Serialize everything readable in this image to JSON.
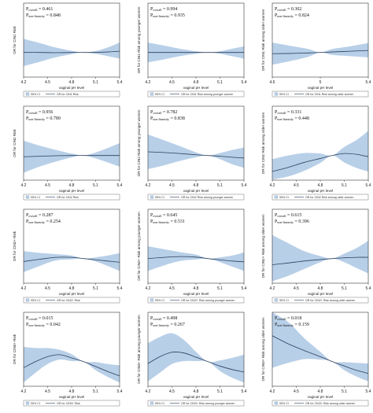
{
  "chart_data": [
    {
      "type": "line",
      "row": 0,
      "col": 0,
      "ylabel": "OR for CIN1 Risk",
      "xlabel": "vaginal pH level",
      "xticks": [
        "4.2",
        "4.5",
        "4.8",
        "5.1",
        "5.4"
      ],
      "xlim": [
        4.2,
        5.4
      ],
      "ylim": [
        0,
        3
      ],
      "p_overall_value": "0.461",
      "p_nonlin_value": "0.848",
      "legend_ci": "95% CI",
      "legend_line": "OR for CIN1 Risk",
      "x": [
        4.2,
        4.4,
        4.6,
        4.8,
        4.95,
        5.1,
        5.25,
        5.4
      ],
      "series": [
        {
          "values": [
            1.0,
            1.0,
            0.99,
            1.0,
            1.0,
            1.0,
            1.02,
            1.05
          ]
        }
      ],
      "ci_lower": [
        0.45,
        0.62,
        0.8,
        0.93,
        1.0,
        0.94,
        0.85,
        0.75
      ],
      "ci_upper": [
        1.55,
        1.38,
        1.2,
        1.07,
        1.0,
        1.06,
        1.2,
        1.4
      ]
    },
    {
      "type": "line",
      "row": 0,
      "col": 1,
      "ylabel": "OR for CIN1 Risk among younger women",
      "xlabel": "vaginal pH level",
      "xticks": [
        "4.2",
        "4.5",
        "4.8",
        "5.1",
        "5.4"
      ],
      "xlim": [
        4.2,
        5.4
      ],
      "ylim": [
        0,
        3
      ],
      "p_overall_value": "0.994",
      "p_nonlin_value": "0.935",
      "legend_ci": "95% CI",
      "legend_line": "OR for CIN1 Risk among younger women",
      "x": [
        4.2,
        4.4,
        4.6,
        4.8,
        4.95,
        5.1,
        5.25,
        5.4
      ],
      "series": [
        {
          "values": [
            1.0,
            1.0,
            1.0,
            1.0,
            1.0,
            1.0,
            1.0,
            1.0
          ]
        }
      ],
      "ci_lower": [
        0.6,
        0.72,
        0.85,
        0.95,
        1.0,
        0.95,
        0.85,
        0.75
      ],
      "ci_upper": [
        1.4,
        1.28,
        1.15,
        1.05,
        1.0,
        1.05,
        1.15,
        1.25
      ]
    },
    {
      "type": "line",
      "row": 0,
      "col": 2,
      "ylabel": "OR for CIN1 Risk among older women",
      "xlabel": "vaginal pH level",
      "xticks": [
        "4.6",
        "5",
        "5.4"
      ],
      "xlim": [
        4.6,
        5.4
      ],
      "ylim": [
        0,
        3
      ],
      "p_overall_value": "0.302",
      "p_nonlin_value": "0.824",
      "legend_ci": "95% CI",
      "legend_line": "OR for CIN1 Risk among older women",
      "x": [
        4.6,
        4.75,
        4.9,
        5.0,
        5.1,
        5.25,
        5.4
      ],
      "series": [
        {
          "values": [
            0.95,
            0.96,
            0.98,
            1.0,
            1.02,
            1.05,
            1.08
          ]
        }
      ],
      "ci_lower": [
        0.5,
        0.65,
        0.82,
        1.0,
        0.9,
        0.85,
        0.8
      ],
      "ci_upper": [
        1.4,
        1.27,
        1.14,
        1.0,
        1.14,
        1.25,
        1.38
      ]
    },
    {
      "type": "line",
      "row": 1,
      "col": 0,
      "ylabel": "OR for CIN2 Risk",
      "xlabel": "vaginal pH level",
      "xticks": [
        "4.2",
        "4.5",
        "4.8",
        "5.1",
        "5.4"
      ],
      "xlim": [
        4.2,
        5.4
      ],
      "ylim": [
        0,
        3
      ],
      "p_overall_value": "0.956",
      "p_nonlin_value": "0.789",
      "legend_ci": "95% CI",
      "legend_line": "OR for CIN2 Risk",
      "x": [
        4.2,
        4.4,
        4.6,
        4.8,
        4.95,
        5.1,
        5.25,
        5.4
      ],
      "series": [
        {
          "values": [
            0.95,
            0.97,
            0.99,
            1.0,
            1.0,
            1.0,
            1.0,
            1.0
          ]
        }
      ],
      "ci_lower": [
        0.3,
        0.55,
        0.75,
        0.92,
        1.0,
        0.88,
        0.72,
        0.55
      ],
      "ci_upper": [
        1.6,
        1.4,
        1.23,
        1.08,
        1.0,
        1.12,
        1.3,
        1.5
      ]
    },
    {
      "type": "line",
      "row": 1,
      "col": 1,
      "ylabel": "OR for CIN2 Risk among younger women",
      "xlabel": "vaginal pH level",
      "xticks": [
        "4.2",
        "4.5",
        "4.8",
        "5.1",
        "5.4"
      ],
      "xlim": [
        4.2,
        5.4
      ],
      "ylim": [
        0,
        3
      ],
      "p_overall_value": "0.782",
      "p_nonlin_value": "0.838",
      "legend_ci": "95% CI",
      "legend_line": "OR for CIN2 Risk among younger women",
      "x": [
        4.2,
        4.4,
        4.6,
        4.8,
        4.95,
        5.1,
        5.25,
        5.4
      ],
      "series": [
        {
          "values": [
            1.15,
            1.12,
            1.08,
            1.03,
            1.0,
            0.97,
            0.93,
            0.9
          ]
        }
      ],
      "ci_lower": [
        0.45,
        0.6,
        0.78,
        0.93,
        1.0,
        0.85,
        0.65,
        0.5
      ],
      "ci_upper": [
        1.85,
        1.62,
        1.38,
        1.13,
        1.0,
        1.1,
        1.22,
        1.32
      ]
    },
    {
      "type": "line",
      "row": 1,
      "col": 2,
      "ylabel": "OR for CIN2 Risk among older women",
      "xlabel": "vaginal pH level",
      "xticks": [
        "4.2",
        "4.5",
        "4.8",
        "5.1",
        "5.4"
      ],
      "xlim": [
        4.2,
        5.4
      ],
      "ylim": [
        0,
        3
      ],
      "p_overall_value": "0.331",
      "p_nonlin_value": "0.448",
      "legend_ci": "95% CI",
      "legend_line": "OR for CIN2 Risk among older women",
      "x": [
        4.2,
        4.4,
        4.6,
        4.8,
        4.95,
        5.1,
        5.25,
        5.4
      ],
      "series": [
        {
          "values": [
            0.35,
            0.52,
            0.72,
            0.88,
            1.0,
            1.08,
            1.05,
            0.95
          ]
        }
      ],
      "ci_lower": [
        0.02,
        0.15,
        0.38,
        0.7,
        1.0,
        0.72,
        0.5,
        0.35
      ],
      "ci_upper": [
        0.85,
        1.0,
        1.1,
        1.08,
        1.0,
        1.35,
        1.62,
        2.0
      ]
    },
    {
      "type": "line",
      "row": 2,
      "col": 0,
      "ylabel": "OR for CIN2+ Risk",
      "xlabel": "vaginal pH level",
      "xticks": [
        "4.2",
        "4.5",
        "4.8",
        "5.1",
        "5.4"
      ],
      "xlim": [
        4.2,
        5.4
      ],
      "ylim": [
        0,
        3
      ],
      "p_overall_value": "0.287",
      "p_nonlin_value": "0.254",
      "legend_ci": "95% CI",
      "legend_line": "OR for CIN2+ Risk",
      "x": [
        4.2,
        4.4,
        4.6,
        4.8,
        4.95,
        5.1,
        5.25,
        5.4
      ],
      "series": [
        {
          "values": [
            0.88,
            0.97,
            1.05,
            1.05,
            1.0,
            0.95,
            0.9,
            0.85
          ]
        }
      ],
      "ci_lower": [
        0.45,
        0.7,
        0.92,
        0.97,
        1.0,
        0.88,
        0.7,
        0.5
      ],
      "ci_upper": [
        1.3,
        1.23,
        1.18,
        1.12,
        1.0,
        1.05,
        1.12,
        1.22
      ]
    },
    {
      "type": "line",
      "row": 2,
      "col": 1,
      "ylabel": "OR for CIN2+ Risk among younger women",
      "xlabel": "vaginal pH level",
      "xticks": [
        "4.2",
        "4.5",
        "4.8",
        "5.1",
        "5.4"
      ],
      "xlim": [
        4.2,
        5.4
      ],
      "ylim": [
        0,
        3
      ],
      "p_overall_value": "0.645",
      "p_nonlin_value": "0.531",
      "legend_ci": "95% CI",
      "legend_line": "OR for CIN2+ Risk among younger women",
      "x": [
        4.2,
        4.4,
        4.6,
        4.8,
        4.95,
        5.1,
        5.25,
        5.4
      ],
      "series": [
        {
          "values": [
            1.0,
            1.05,
            1.08,
            1.06,
            1.0,
            0.95,
            0.9,
            0.87
          ]
        }
      ],
      "ci_lower": [
        0.5,
        0.72,
        0.9,
        0.96,
        1.0,
        0.85,
        0.68,
        0.5
      ],
      "ci_upper": [
        1.5,
        1.38,
        1.26,
        1.16,
        1.0,
        1.05,
        1.12,
        1.25
      ]
    },
    {
      "type": "line",
      "row": 2,
      "col": 2,
      "ylabel": "OR for CIN2+ Risk among older women",
      "xlabel": "vaginal pH level",
      "xticks": [
        "4.2",
        "4.5",
        "4.8",
        "5.1",
        "5.4"
      ],
      "xlim": [
        4.2,
        5.4
      ],
      "ylim": [
        0,
        3
      ],
      "p_overall_value": "0.615",
      "p_nonlin_value": "0.396",
      "legend_ci": "95% CI",
      "legend_line": "OR for CIN2+ Risk among older women",
      "x": [
        4.2,
        4.4,
        4.6,
        4.8,
        4.95,
        5.1,
        5.25,
        5.4
      ],
      "series": [
        {
          "values": [
            0.75,
            0.82,
            0.9,
            0.96,
            1.0,
            1.03,
            1.05,
            1.05
          ]
        }
      ],
      "ci_lower": [
        0.08,
        0.3,
        0.58,
        0.85,
        1.0,
        0.85,
        0.62,
        0.4
      ],
      "ci_upper": [
        1.95,
        1.62,
        1.3,
        1.1,
        1.0,
        1.2,
        1.42,
        1.72
      ]
    },
    {
      "type": "line",
      "row": 3,
      "col": 0,
      "ylabel": "OR for CIN3+ Risk",
      "xlabel": "vaginal pH level",
      "xticks": [
        "4.2",
        "4.5",
        "4.8",
        "5.1",
        "5.4"
      ],
      "xlim": [
        4.2,
        5.4
      ],
      "ylim": [
        0,
        3
      ],
      "p_overall_value": "0.015",
      "p_nonlin_value": "0.042",
      "legend_ci": "95% CI",
      "legend_line": "OR for CIN3+ Risk",
      "x": [
        4.2,
        4.35,
        4.5,
        4.65,
        4.8,
        4.95,
        5.1,
        5.25,
        5.4
      ],
      "series": [
        {
          "values": [
            0.75,
            1.0,
            1.2,
            1.28,
            1.15,
            1.0,
            0.8,
            0.6,
            0.42
          ]
        }
      ],
      "ci_lower": [
        0.15,
        0.55,
        0.9,
        1.08,
        1.02,
        1.0,
        0.65,
        0.38,
        0.15
      ],
      "ci_upper": [
        1.6,
        1.55,
        1.55,
        1.48,
        1.3,
        1.0,
        0.98,
        0.9,
        0.85
      ]
    },
    {
      "type": "line",
      "row": 3,
      "col": 1,
      "ylabel": "OR for CIN3+ Risk among younger women",
      "xlabel": "vaginal pH level",
      "xticks": [
        "4.2",
        "4.5",
        "4.8",
        "5.1",
        "5.4"
      ],
      "xlim": [
        4.2,
        5.4
      ],
      "ylim": [
        0,
        3
      ],
      "p_overall_value": "0.498",
      "p_nonlin_value": "0.267",
      "legend_ci": "95% CI",
      "legend_line": "OR for CIN3+ Risk among younger women",
      "x": [
        4.2,
        4.35,
        4.5,
        4.65,
        4.8,
        4.95,
        5.1,
        5.25,
        5.4
      ],
      "series": [
        {
          "values": [
            0.92,
            1.2,
            1.38,
            1.35,
            1.18,
            1.0,
            0.82,
            0.68,
            0.58
          ]
        }
      ],
      "ci_lower": [
        0.2,
        0.55,
        0.9,
        1.02,
        1.02,
        1.0,
        0.62,
        0.35,
        0.15
      ],
      "ci_upper": [
        1.75,
        2.0,
        2.15,
        1.88,
        1.4,
        1.0,
        1.05,
        1.15,
        1.28
      ]
    },
    {
      "type": "line",
      "row": 3,
      "col": 2,
      "ylabel": "OR for CIN3+ Risk among older women",
      "xlabel": "vaginal pH level",
      "xticks": [
        "4.2",
        "4.5",
        "4.8",
        "5.1",
        "5.4"
      ],
      "xlim": [
        4.2,
        5.4
      ],
      "ylim": [
        0,
        3
      ],
      "p_overall_value": "0.018",
      "p_nonlin_value": "0.159",
      "legend_ci": "95% CI",
      "legend_line": "OR for CIN3+ Risk among older women",
      "x": [
        4.2,
        4.4,
        4.6,
        4.8,
        4.95,
        5.1,
        5.25,
        5.4
      ],
      "series": [
        {
          "values": [
            2.05,
            1.72,
            1.45,
            1.2,
            1.0,
            0.82,
            0.65,
            0.52
          ]
        }
      ],
      "ci_lower": [
        0.75,
        0.95,
        1.1,
        1.08,
        1.0,
        0.65,
        0.4,
        0.2
      ],
      "ci_upper": [
        3.0,
        2.6,
        1.95,
        1.4,
        1.0,
        0.98,
        0.95,
        0.92
      ]
    }
  ],
  "labels": {
    "p_overall_sub": "overall",
    "p_nonlin_sub": "non-linearity",
    "p_prefix": "P",
    "eq": " = "
  },
  "colors": {
    "band": "#b8cfe8",
    "line": "#2b3f5c",
    "frame": "#333333",
    "legend_box": "#555555"
  }
}
